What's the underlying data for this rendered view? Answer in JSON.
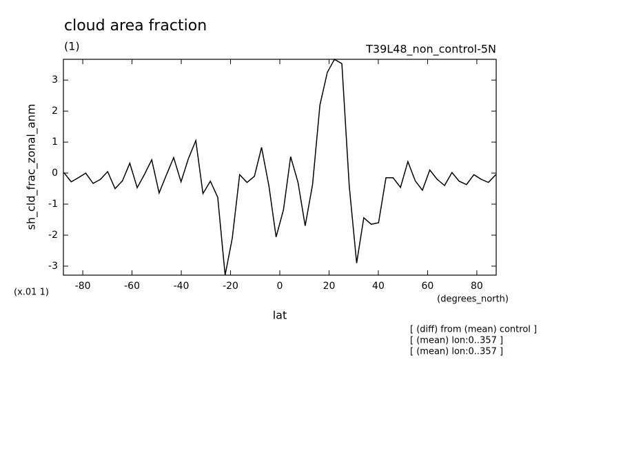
{
  "chart_data": {
    "type": "line",
    "title": "cloud area fraction",
    "subtitle": "(1)",
    "annotation_right": "T39L48_non_control-5N",
    "ylabel": "sh_cld_frac_zonal_anm",
    "y_scale_label": "(x.01 1)",
    "xlabel": "lat",
    "x_unit_label": "(degrees_north)",
    "notes": [
      "[ (diff) from (mean) control ]",
      "[ (mean) lon:0..357 ]",
      "[ (mean) lon:0..357 ]"
    ],
    "x": [
      -87.7,
      -84.7,
      -81.8,
      -78.8,
      -75.8,
      -72.8,
      -69.9,
      -66.9,
      -63.9,
      -60.9,
      -57.9,
      -55.0,
      -52.0,
      -49.0,
      -46.0,
      -43.1,
      -40.1,
      -37.1,
      -34.1,
      -31.2,
      -28.2,
      -25.2,
      -22.2,
      -19.3,
      -16.3,
      -13.3,
      -10.3,
      -7.4,
      -4.4,
      -1.5,
      1.5,
      4.4,
      7.4,
      10.3,
      13.3,
      16.3,
      19.3,
      22.2,
      25.2,
      28.2,
      31.2,
      34.1,
      37.1,
      40.1,
      43.1,
      46.0,
      49.0,
      52.0,
      55.0,
      57.9,
      60.9,
      63.9,
      66.9,
      69.9,
      72.8,
      75.8,
      78.8,
      81.8,
      84.7,
      87.7
    ],
    "series": [
      {
        "color": "#000000",
        "values": [
          0.02,
          -0.28,
          -0.15,
          0.0,
          -0.33,
          -0.2,
          0.05,
          -0.5,
          -0.25,
          0.32,
          -0.47,
          -0.05,
          0.43,
          -0.64,
          -0.05,
          0.5,
          -0.28,
          0.47,
          1.05,
          -0.66,
          -0.26,
          -0.78,
          -3.29,
          -2.1,
          -0.05,
          -0.3,
          -0.1,
          0.83,
          -0.42,
          -2.06,
          -1.18,
          0.53,
          -0.3,
          -1.7,
          -0.37,
          2.2,
          3.25,
          3.67,
          3.53,
          -0.42,
          -2.9,
          -1.44,
          -1.65,
          -1.6,
          -0.15,
          -0.15,
          -0.46,
          0.37,
          -0.25,
          -0.55,
          0.1,
          -0.2,
          -0.4,
          0.02,
          -0.26,
          -0.37,
          -0.05,
          -0.2,
          -0.3,
          -0.05
        ]
      }
    ],
    "xlim": [
      -87.86,
      87.86
    ],
    "ylim": [
      -3.29,
      3.67
    ],
    "xticks": [
      -80,
      -60,
      -40,
      -20,
      0,
      20,
      40,
      60,
      80
    ],
    "yticks": [
      -3,
      -2,
      -1,
      0,
      1,
      2,
      3
    ]
  }
}
